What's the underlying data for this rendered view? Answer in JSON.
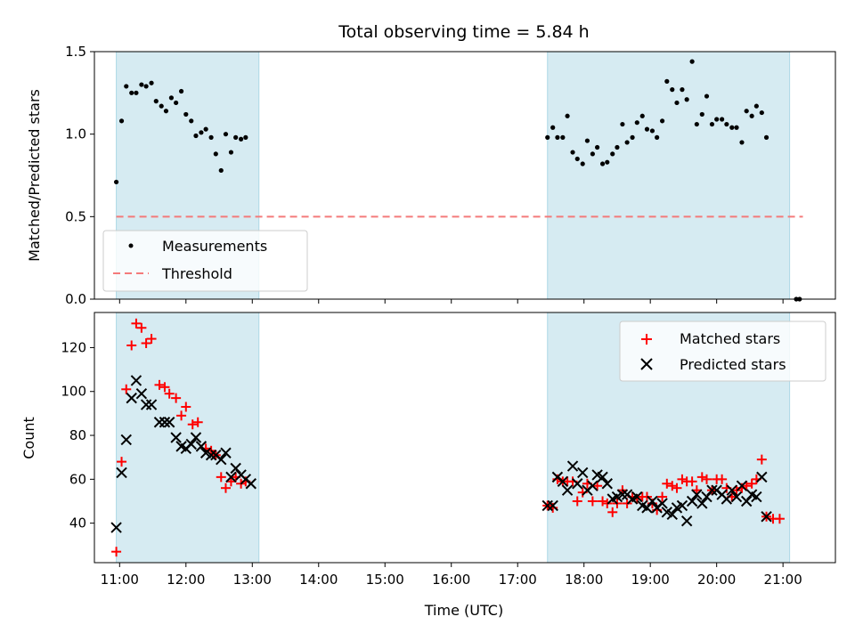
{
  "title": "Total observing time = 5.84 h",
  "x_tick_labels": [
    "11:00",
    "12:00",
    "13:00",
    "14:00",
    "15:00",
    "16:00",
    "17:00",
    "18:00",
    "19:00",
    "20:00",
    "21:00"
  ],
  "chart_data": [
    {
      "type": "scatter",
      "title": "Total observing time = 5.84 h",
      "xlabel": "",
      "ylabel": "Matched/Predicted stars",
      "xlim": [
        10.62,
        21.79
      ],
      "ylim": [
        0,
        1.5
      ],
      "y_ticks": [
        0,
        0.5,
        1.0,
        1.5
      ],
      "y_tick_labels": [
        "0.0",
        "0.5",
        "1.0",
        "1.5"
      ],
      "grid": false,
      "legend_position": "lower left",
      "shaded_spans": [
        [
          10.95,
          13.1
        ],
        [
          17.45,
          21.1
        ]
      ],
      "threshold": {
        "name": "Threshold",
        "y": 0.5,
        "x_start": 10.95,
        "x_end": 21.3,
        "color": "#f47a7a"
      },
      "series": [
        {
          "name": "Measurements",
          "color": "#000000",
          "points": [
            [
              10.95,
              0.71
            ],
            [
              11.03,
              1.08
            ],
            [
              11.1,
              1.29
            ],
            [
              11.18,
              1.25
            ],
            [
              11.25,
              1.25
            ],
            [
              11.33,
              1.3
            ],
            [
              11.4,
              1.29
            ],
            [
              11.48,
              1.31
            ],
            [
              11.55,
              1.2
            ],
            [
              11.63,
              1.17
            ],
            [
              11.7,
              1.14
            ],
            [
              11.78,
              1.22
            ],
            [
              11.85,
              1.19
            ],
            [
              11.93,
              1.26
            ],
            [
              12.0,
              1.12
            ],
            [
              12.08,
              1.08
            ],
            [
              12.15,
              0.99
            ],
            [
              12.23,
              1.01
            ],
            [
              12.3,
              1.03
            ],
            [
              12.38,
              0.98
            ],
            [
              12.45,
              0.88
            ],
            [
              12.53,
              0.78
            ],
            [
              12.6,
              1.0
            ],
            [
              12.68,
              0.89
            ],
            [
              12.75,
              0.98
            ],
            [
              12.83,
              0.97
            ],
            [
              12.9,
              0.98
            ],
            [
              17.45,
              0.98
            ],
            [
              17.53,
              1.04
            ],
            [
              17.6,
              0.98
            ],
            [
              17.68,
              0.98
            ],
            [
              17.75,
              1.11
            ],
            [
              17.83,
              0.89
            ],
            [
              17.9,
              0.85
            ],
            [
              17.98,
              0.82
            ],
            [
              18.05,
              0.96
            ],
            [
              18.13,
              0.88
            ],
            [
              18.2,
              0.92
            ],
            [
              18.28,
              0.82
            ],
            [
              18.35,
              0.83
            ],
            [
              18.43,
              0.88
            ],
            [
              18.5,
              0.92
            ],
            [
              18.58,
              1.06
            ],
            [
              18.65,
              0.95
            ],
            [
              18.73,
              0.98
            ],
            [
              18.8,
              1.07
            ],
            [
              18.88,
              1.11
            ],
            [
              18.95,
              1.03
            ],
            [
              19.03,
              1.02
            ],
            [
              19.1,
              0.98
            ],
            [
              19.18,
              1.08
            ],
            [
              19.25,
              1.32
            ],
            [
              19.33,
              1.27
            ],
            [
              19.4,
              1.19
            ],
            [
              19.48,
              1.27
            ],
            [
              19.55,
              1.21
            ],
            [
              19.63,
              1.44
            ],
            [
              19.7,
              1.06
            ],
            [
              19.78,
              1.12
            ],
            [
              19.85,
              1.23
            ],
            [
              19.93,
              1.06
            ],
            [
              20.0,
              1.09
            ],
            [
              20.08,
              1.09
            ],
            [
              20.15,
              1.06
            ],
            [
              20.23,
              1.04
            ],
            [
              20.3,
              1.04
            ],
            [
              20.38,
              0.95
            ],
            [
              20.45,
              1.14
            ],
            [
              20.53,
              1.11
            ],
            [
              20.6,
              1.17
            ],
            [
              20.68,
              1.13
            ],
            [
              20.75,
              0.98
            ],
            [
              21.2,
              0.0
            ],
            [
              21.25,
              0.0
            ]
          ]
        }
      ]
    },
    {
      "type": "scatter",
      "title": "",
      "xlabel": "Time (UTC)",
      "ylabel": "Count",
      "xlim": [
        10.62,
        21.79
      ],
      "ylim": [
        22,
        136
      ],
      "y_ticks": [
        40,
        60,
        80,
        100,
        120
      ],
      "y_tick_labels": [
        "40",
        "60",
        "80",
        "100",
        "120"
      ],
      "grid": false,
      "legend_position": "upper right",
      "shaded_spans": [
        [
          10.95,
          13.1
        ],
        [
          17.45,
          21.1
        ]
      ],
      "series": [
        {
          "name": "Matched stars",
          "marker": "plus",
          "color": "#ff0000",
          "points": [
            [
              10.95,
              27
            ],
            [
              11.03,
              68
            ],
            [
              11.1,
              101
            ],
            [
              11.18,
              121
            ],
            [
              11.25,
              131
            ],
            [
              11.33,
              129
            ],
            [
              11.4,
              122
            ],
            [
              11.48,
              124
            ],
            [
              11.6,
              103
            ],
            [
              11.68,
              102
            ],
            [
              11.75,
              99
            ],
            [
              11.85,
              97
            ],
            [
              11.93,
              89
            ],
            [
              12.0,
              93
            ],
            [
              12.1,
              85
            ],
            [
              12.18,
              86
            ],
            [
              12.3,
              74
            ],
            [
              12.38,
              73
            ],
            [
              12.45,
              71
            ],
            [
              12.53,
              61
            ],
            [
              12.6,
              56
            ],
            [
              12.68,
              59
            ],
            [
              12.75,
              61
            ],
            [
              12.83,
              58
            ],
            [
              12.9,
              59
            ],
            [
              17.45,
              48
            ],
            [
              17.53,
              47
            ],
            [
              17.6,
              60
            ],
            [
              17.68,
              59
            ],
            [
              17.75,
              59
            ],
            [
              17.83,
              59
            ],
            [
              17.9,
              50
            ],
            [
              17.98,
              54
            ],
            [
              18.05,
              58
            ],
            [
              18.13,
              50
            ],
            [
              18.2,
              57
            ],
            [
              18.28,
              50
            ],
            [
              18.35,
              49
            ],
            [
              18.43,
              45
            ],
            [
              18.5,
              49
            ],
            [
              18.58,
              55
            ],
            [
              18.65,
              49
            ],
            [
              18.73,
              52
            ],
            [
              18.8,
              51
            ],
            [
              18.88,
              52
            ],
            [
              18.95,
              52
            ],
            [
              19.03,
              49
            ],
            [
              19.1,
              46
            ],
            [
              19.18,
              52
            ],
            [
              19.25,
              58
            ],
            [
              19.33,
              57
            ],
            [
              19.4,
              56
            ],
            [
              19.48,
              60
            ],
            [
              19.55,
              59
            ],
            [
              19.63,
              59
            ],
            [
              19.7,
              55
            ],
            [
              19.78,
              61
            ],
            [
              19.85,
              60
            ],
            [
              19.93,
              55
            ],
            [
              20.0,
              60
            ],
            [
              20.08,
              60
            ],
            [
              20.15,
              56
            ],
            [
              20.23,
              52
            ],
            [
              20.3,
              55
            ],
            [
              20.38,
              56
            ],
            [
              20.45,
              57
            ],
            [
              20.53,
              58
            ],
            [
              20.6,
              60
            ],
            [
              20.68,
              69
            ],
            [
              20.75,
              43
            ],
            [
              20.85,
              42
            ],
            [
              20.95,
              42
            ]
          ]
        },
        {
          "name": "Predicted stars",
          "marker": "x",
          "color": "#000000",
          "points": [
            [
              10.95,
              38
            ],
            [
              11.03,
              63
            ],
            [
              11.1,
              78
            ],
            [
              11.18,
              97
            ],
            [
              11.25,
              105
            ],
            [
              11.33,
              99
            ],
            [
              11.4,
              94
            ],
            [
              11.48,
              94
            ],
            [
              11.6,
              86
            ],
            [
              11.68,
              86
            ],
            [
              11.75,
              86
            ],
            [
              11.85,
              79
            ],
            [
              11.93,
              75
            ],
            [
              12.0,
              74
            ],
            [
              12.08,
              76
            ],
            [
              12.15,
              79
            ],
            [
              12.23,
              75
            ],
            [
              12.3,
              72
            ],
            [
              12.38,
              71
            ],
            [
              12.45,
              71
            ],
            [
              12.53,
              69
            ],
            [
              12.6,
              72
            ],
            [
              12.68,
              61
            ],
            [
              12.75,
              65
            ],
            [
              12.83,
              62
            ],
            [
              12.9,
              60
            ],
            [
              12.98,
              58
            ],
            [
              17.45,
              48
            ],
            [
              17.53,
              48
            ],
            [
              17.6,
              61
            ],
            [
              17.68,
              59
            ],
            [
              17.75,
              55
            ],
            [
              17.83,
              66
            ],
            [
              17.9,
              58
            ],
            [
              17.98,
              63
            ],
            [
              18.05,
              55
            ],
            [
              18.13,
              57
            ],
            [
              18.2,
              62
            ],
            [
              18.28,
              61
            ],
            [
              18.35,
              58
            ],
            [
              18.43,
              51
            ],
            [
              18.5,
              52
            ],
            [
              18.58,
              53
            ],
            [
              18.65,
              53
            ],
            [
              18.73,
              51
            ],
            [
              18.8,
              52
            ],
            [
              18.88,
              48
            ],
            [
              18.95,
              47
            ],
            [
              19.03,
              50
            ],
            [
              19.1,
              47
            ],
            [
              19.18,
              49
            ],
            [
              19.25,
              45
            ],
            [
              19.33,
              44
            ],
            [
              19.4,
              47
            ],
            [
              19.48,
              48
            ],
            [
              19.55,
              41
            ],
            [
              19.63,
              50
            ],
            [
              19.7,
              53
            ],
            [
              19.78,
              49
            ],
            [
              19.85,
              52
            ],
            [
              19.93,
              55
            ],
            [
              20.0,
              55
            ],
            [
              20.08,
              53
            ],
            [
              20.15,
              51
            ],
            [
              20.23,
              55
            ],
            [
              20.3,
              52
            ],
            [
              20.38,
              57
            ],
            [
              20.45,
              50
            ],
            [
              20.53,
              53
            ],
            [
              20.6,
              52
            ],
            [
              20.68,
              61
            ],
            [
              20.75,
              43
            ]
          ]
        }
      ]
    }
  ]
}
